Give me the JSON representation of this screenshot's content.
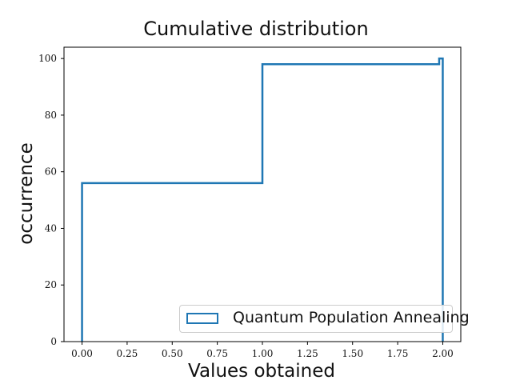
{
  "chart_data": {
    "type": "step",
    "title": "Cumulative distribution",
    "xlabel": "Values obtained",
    "ylabel": "occurrence",
    "xlim": [
      -0.1,
      2.1
    ],
    "ylim": [
      0,
      104
    ],
    "xticks": [
      0.0,
      0.25,
      0.5,
      0.75,
      1.0,
      1.25,
      1.5,
      1.75,
      2.0
    ],
    "xtick_labels": [
      "0.00",
      "0.25",
      "0.50",
      "0.75",
      "1.00",
      "1.25",
      "1.50",
      "1.75",
      "2.00"
    ],
    "yticks": [
      0,
      20,
      40,
      60,
      80,
      100
    ],
    "ytick_labels": [
      "0",
      "20",
      "40",
      "60",
      "80",
      "100"
    ],
    "grid": false,
    "legend_position": "lower-right",
    "series": [
      {
        "name": "Quantum Population Annealing",
        "color": "#1f77b4",
        "x": [
          0.0,
          0.0,
          1.0,
          1.0,
          1.98,
          1.98,
          2.0,
          2.0
        ],
        "y": [
          0,
          56,
          56,
          98,
          98,
          100,
          100,
          0
        ]
      }
    ]
  }
}
